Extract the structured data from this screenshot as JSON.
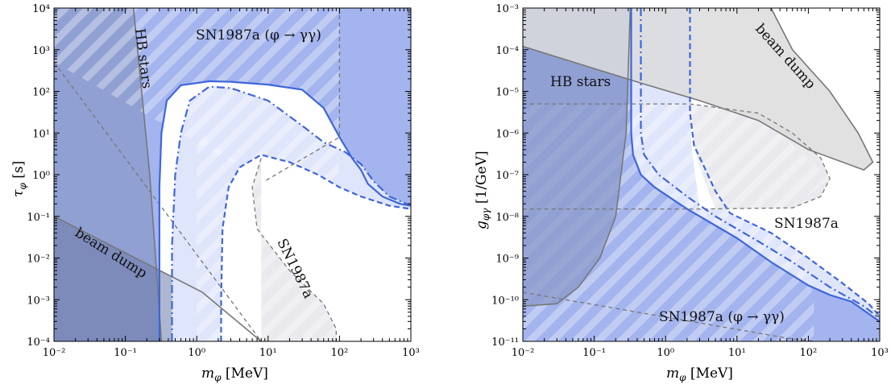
{
  "chart_data": [
    {
      "type": "area",
      "xlabel": "m_φ [MeV]",
      "ylabel": "τ_φ [s]",
      "xscale": "log",
      "yscale": "log",
      "xlim": [
        0.01,
        1000
      ],
      "ylim": [
        0.0001,
        10000
      ],
      "x_ticks": [
        "10⁻²",
        "10⁻¹",
        "10⁰",
        "10¹",
        "10²",
        "10³"
      ],
      "y_ticks": [
        "10⁻⁴",
        "10⁻³",
        "10⁻²",
        "10⁻¹",
        "10⁰",
        "10¹",
        "10²",
        "10³",
        "10⁴"
      ],
      "annotations": [
        "HB stars",
        "SN1987a (φ → γγ)",
        "beam dump",
        "SN1987a"
      ],
      "curves": {
        "solid": [
          [
            0.3,
            0.0001
          ],
          [
            0.3,
            0.5
          ],
          [
            0.32,
            10
          ],
          [
            0.38,
            60
          ],
          [
            0.6,
            140
          ],
          [
            1.5,
            175
          ],
          [
            3,
            170
          ],
          [
            10,
            145
          ],
          [
            30,
            110
          ],
          [
            60,
            40
          ],
          [
            100,
            8
          ],
          [
            150,
            2.5
          ],
          [
            200,
            1.3
          ],
          [
            250,
            0.6
          ],
          [
            400,
            0.3
          ],
          [
            700,
            0.2
          ],
          [
            1000,
            0.18
          ]
        ],
        "dashdot": [
          [
            0.45,
            0.0001
          ],
          [
            0.45,
            0.02
          ],
          [
            0.5,
            1
          ],
          [
            0.6,
            10
          ],
          [
            0.8,
            60
          ],
          [
            1.5,
            130
          ],
          [
            3,
            120
          ],
          [
            10,
            60
          ],
          [
            30,
            15
          ],
          [
            60,
            6
          ],
          [
            120,
            3.5
          ],
          [
            200,
            1.8
          ],
          [
            300,
            0.7
          ],
          [
            500,
            0.3
          ],
          [
            1000,
            0.18
          ]
        ],
        "dashed": [
          [
            2.2,
            0.0001
          ],
          [
            2.2,
            0.001
          ],
          [
            2.3,
            0.05
          ],
          [
            2.8,
            0.5
          ],
          [
            4,
            1.5
          ],
          [
            8,
            3
          ],
          [
            20,
            2
          ],
          [
            50,
            1
          ],
          [
            100,
            0.5
          ],
          [
            200,
            0.3
          ],
          [
            500,
            0.18
          ],
          [
            1000,
            0.15
          ]
        ]
      }
    },
    {
      "type": "area",
      "xlabel": "m_φ [MeV]",
      "ylabel": "g_φγ [1/GeV]",
      "xscale": "log",
      "yscale": "log",
      "xlim": [
        0.01,
        1000
      ],
      "ylim": [
        1e-11,
        0.001
      ],
      "x_ticks": [
        "10⁻²",
        "10⁻¹",
        "10⁰",
        "10¹",
        "10²",
        "10³"
      ],
      "y_ticks": [
        "10⁻¹¹",
        "10⁻¹⁰",
        "10⁻⁹",
        "10⁻⁸",
        "10⁻⁷",
        "10⁻⁶",
        "10⁻⁵",
        "10⁻⁴",
        "10⁻³"
      ],
      "annotations": [
        "HB stars",
        "beam dump",
        "SN1987a",
        "SN1987a (φ → γγ)"
      ],
      "curves": {
        "solid": [
          [
            0.33,
            0.001
          ],
          [
            0.33,
            1e-06
          ],
          [
            0.35,
            3e-07
          ],
          [
            0.45,
            1e-07
          ],
          [
            0.7,
            5e-08
          ],
          [
            2,
            1.5e-08
          ],
          [
            10,
            3e-09
          ],
          [
            30,
            8e-10
          ],
          [
            100,
            2.2e-10
          ],
          [
            200,
            1.3e-10
          ],
          [
            400,
            9e-11
          ],
          [
            1000,
            3e-11
          ]
        ],
        "dashdot": [
          [
            0.45,
            0.001
          ],
          [
            0.45,
            1e-06
          ],
          [
            0.5,
            3e-07
          ],
          [
            0.8,
            1e-07
          ],
          [
            2,
            3e-08
          ],
          [
            5,
            1e-08
          ],
          [
            20,
            2.5e-09
          ],
          [
            60,
            8e-10
          ],
          [
            200,
            2e-10
          ],
          [
            600,
            7e-11
          ],
          [
            1000,
            3.5e-11
          ]
        ],
        "dashed": [
          [
            2.2,
            0.001
          ],
          [
            2.2,
            3e-06
          ],
          [
            2.5,
            5e-07
          ],
          [
            3.5,
            1.5e-07
          ],
          [
            5,
            4e-08
          ],
          [
            8,
            1.2e-08
          ],
          [
            30,
            4e-09
          ],
          [
            100,
            1e-09
          ],
          [
            300,
            2.5e-10
          ],
          [
            700,
            8e-11
          ],
          [
            1000,
            4e-11
          ]
        ]
      }
    }
  ]
}
